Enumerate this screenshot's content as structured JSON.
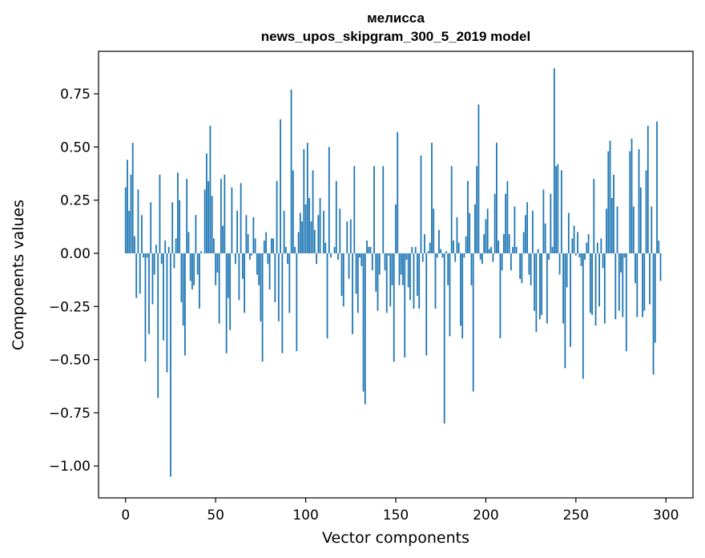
{
  "chart_data": {
    "type": "bar",
    "title": "мелисса",
    "subtitle": "news_upos_skipgram_300_5_2019 model",
    "xlabel": "Vector components",
    "ylabel": "Components values",
    "xlim": [
      -15,
      315
    ],
    "ylim": [
      -1.15,
      0.95
    ],
    "xticks": [
      0,
      50,
      100,
      150,
      200,
      250,
      300
    ],
    "yticks": [
      -1.0,
      -0.75,
      -0.5,
      -0.25,
      0.0,
      0.25,
      0.5,
      0.75
    ],
    "ytick_labels": [
      "−1.00",
      "−0.75",
      "−0.50",
      "−0.25",
      "0.00",
      "0.25",
      "0.50",
      "0.75"
    ],
    "bar_color": "#1f77b4",
    "grid": false,
    "series": [
      {
        "values": [
          0.31,
          0.44,
          0.2,
          0.37,
          0.52,
          0.08,
          -0.21,
          0.3,
          -0.19,
          0.18,
          -0.02,
          -0.51,
          -0.02,
          -0.38,
          0.24,
          -0.24,
          -0.1,
          0.04,
          -0.68,
          0.37,
          -0.05,
          -0.41,
          0.06,
          -0.56,
          0.03,
          -1.05,
          0.24,
          -0.07,
          0.07,
          0.38,
          0.25,
          -0.23,
          -0.34,
          -0.48,
          0.35,
          0.1,
          -0.13,
          -0.17,
          -0.15,
          0.18,
          -0.1,
          -0.26,
          0.01,
          0.0,
          0.3,
          0.47,
          0.34,
          0.6,
          0.27,
          0.07,
          -0.15,
          -0.09,
          -0.33,
          0.35,
          0.13,
          0.37,
          -0.47,
          -0.21,
          -0.36,
          0.31,
          0.0,
          -0.05,
          0.2,
          -0.22,
          0.33,
          -0.12,
          -0.28,
          0.18,
          0.09,
          -0.03,
          -0.01,
          0.17,
          0.07,
          -0.1,
          -0.15,
          -0.32,
          -0.51,
          0.06,
          0.1,
          -0.05,
          -0.17,
          0.07,
          0.07,
          -0.23,
          0.34,
          -0.32,
          0.63,
          -0.47,
          0.2,
          0.03,
          -0.05,
          -0.28,
          0.77,
          0.39,
          0.03,
          -0.46,
          0.1,
          0.19,
          0.15,
          0.49,
          0.23,
          0.52,
          0.26,
          0.15,
          0.39,
          0.11,
          -0.05,
          0.18,
          0.26,
          0.0,
          0.2,
          0.05,
          -0.4,
          0.5,
          -0.02,
          0.0,
          0.03,
          0.34,
          -0.03,
          0.21,
          -0.2,
          -0.25,
          0.0,
          0.15,
          -0.12,
          0.16,
          -0.38,
          0.41,
          -0.19,
          -0.28,
          -0.02,
          -0.06,
          -0.65,
          -0.71,
          0.06,
          0.03,
          0.03,
          -0.08,
          0.41,
          -0.18,
          -0.27,
          -0.1,
          0.0,
          0.41,
          -0.08,
          -0.28,
          -0.01,
          -0.25,
          -0.15,
          -0.51,
          0.23,
          0.57,
          -0.15,
          -0.1,
          -0.15,
          -0.49,
          -0.03,
          -0.16,
          -0.22,
          0.03,
          -0.26,
          0.03,
          -0.2,
          -0.26,
          0.46,
          -0.04,
          0.09,
          -0.48,
          0.01,
          0.05,
          0.52,
          0.21,
          -0.26,
          -0.02,
          0.11,
          0.02,
          -0.02,
          -0.8,
          0.01,
          -0.15,
          -0.39,
          0.41,
          0.06,
          -0.04,
          0.17,
          0.05,
          -0.34,
          -0.4,
          -0.02,
          0.08,
          0.34,
          0.19,
          -0.15,
          -0.65,
          0.23,
          0.41,
          0.7,
          -0.03,
          -0.05,
          0.09,
          0.16,
          0.21,
          0.02,
          0.03,
          -0.04,
          0.28,
          0.52,
          0.06,
          -0.4,
          -0.08,
          0.09,
          0.28,
          0.34,
          0.09,
          -0.08,
          0.03,
          0.22,
          0.03,
          0.0,
          -0.12,
          -0.14,
          0.1,
          0.18,
          0.24,
          -0.1,
          -0.15,
          0.2,
          -0.27,
          -0.37,
          0.02,
          -0.31,
          -0.29,
          0.3,
          0.14,
          -0.33,
          -0.03,
          0.28,
          0.03,
          0.87,
          0.41,
          0.42,
          -0.1,
          0.39,
          -0.33,
          -0.54,
          -0.16,
          0.19,
          -0.44,
          0.07,
          0.13,
          -0.01,
          0.1,
          -0.02,
          -0.06,
          -0.59,
          -0.03,
          0.05,
          0.09,
          -0.28,
          -0.29,
          0.35,
          -0.34,
          0.05,
          -0.25,
          0.07,
          -0.07,
          -0.33,
          0.21,
          0.48,
          0.53,
          0.26,
          0.37,
          -0.31,
          0.22,
          -0.27,
          -0.09,
          -0.3,
          -0.02,
          -0.46,
          0.0,
          0.48,
          0.54,
          0.22,
          -0.14,
          -0.3,
          0.49,
          0.31,
          -0.3,
          -0.27,
          0.39,
          0.6,
          -0.24,
          0.22,
          -0.57,
          -0.42,
          0.62,
          0.06,
          -0.13
        ]
      }
    ]
  }
}
